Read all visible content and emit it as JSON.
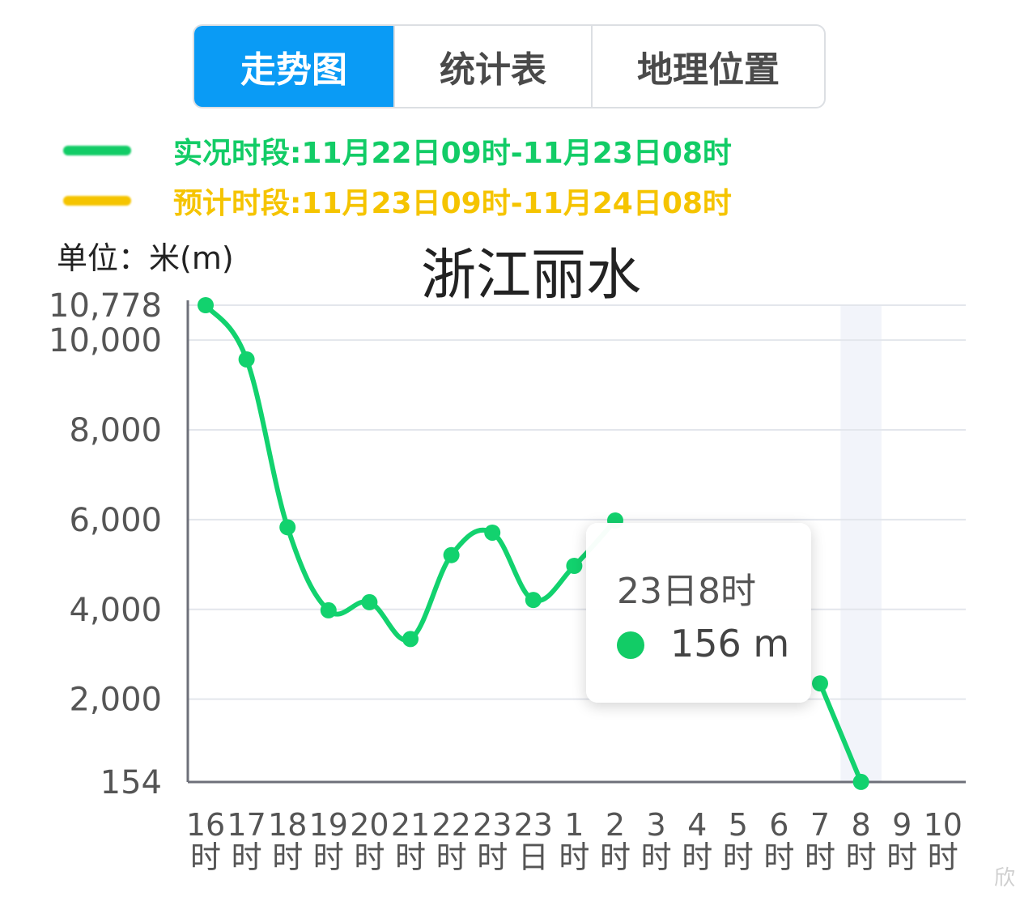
{
  "tabs": [
    {
      "label": "走势图",
      "active": true
    },
    {
      "label": "统计表",
      "active": false
    },
    {
      "label": "地理位置",
      "active": false
    }
  ],
  "legend": {
    "observed": {
      "text": "实况时段:11月22日09时-11月23日08时",
      "color": "#12cc66"
    },
    "forecast": {
      "text": "预计时段:11月23日09时-11月24日08时",
      "color": "#f5c400"
    }
  },
  "unit_label": "单位：米(m)",
  "tooltip": {
    "time": "23日8时",
    "value": "156 m"
  },
  "watermark": "欣",
  "chart_data": {
    "type": "line",
    "title": "浙江丽水",
    "xlabel": "",
    "ylabel": "单位：米(m)",
    "categories": [
      "16时",
      "17时",
      "18时",
      "19时",
      "20时",
      "21时",
      "22时",
      "23时",
      "23日",
      "1时",
      "2时",
      "3时",
      "4时",
      "5时",
      "6时",
      "7时",
      "8时",
      "9时",
      "10时"
    ],
    "x_tick_lines": [
      [
        "16",
        "时"
      ],
      [
        "17",
        "时"
      ],
      [
        "18",
        "时"
      ],
      [
        "19",
        "时"
      ],
      [
        "20",
        "时"
      ],
      [
        "21",
        "时"
      ],
      [
        "22",
        "时"
      ],
      [
        "23",
        "时"
      ],
      [
        "23",
        "日"
      ],
      [
        "1",
        "时"
      ],
      [
        "2",
        "时"
      ],
      [
        "3",
        "时"
      ],
      [
        "4",
        "时"
      ],
      [
        "5",
        "时"
      ],
      [
        "6",
        "时"
      ],
      [
        "7",
        "时"
      ],
      [
        "8",
        "时"
      ],
      [
        "9",
        "时"
      ],
      [
        "10",
        "时"
      ]
    ],
    "y_ticks": [
      154,
      2000,
      4000,
      6000,
      8000,
      10000,
      10778
    ],
    "y_tick_labels": [
      "154",
      "2,000",
      "4,000",
      "6,000",
      "8,000",
      "10,000",
      "10,778"
    ],
    "ylim": [
      154,
      10778
    ],
    "grid": true,
    "highlight_category": "8时",
    "series": [
      {
        "color": "#12d26e",
        "values": [
          10778,
          9570,
          5830,
          3980,
          4160,
          3340,
          5210,
          5710,
          4210,
          4970,
          5980,
          null,
          null,
          null,
          null,
          2350,
          156,
          null,
          null
        ]
      }
    ]
  }
}
